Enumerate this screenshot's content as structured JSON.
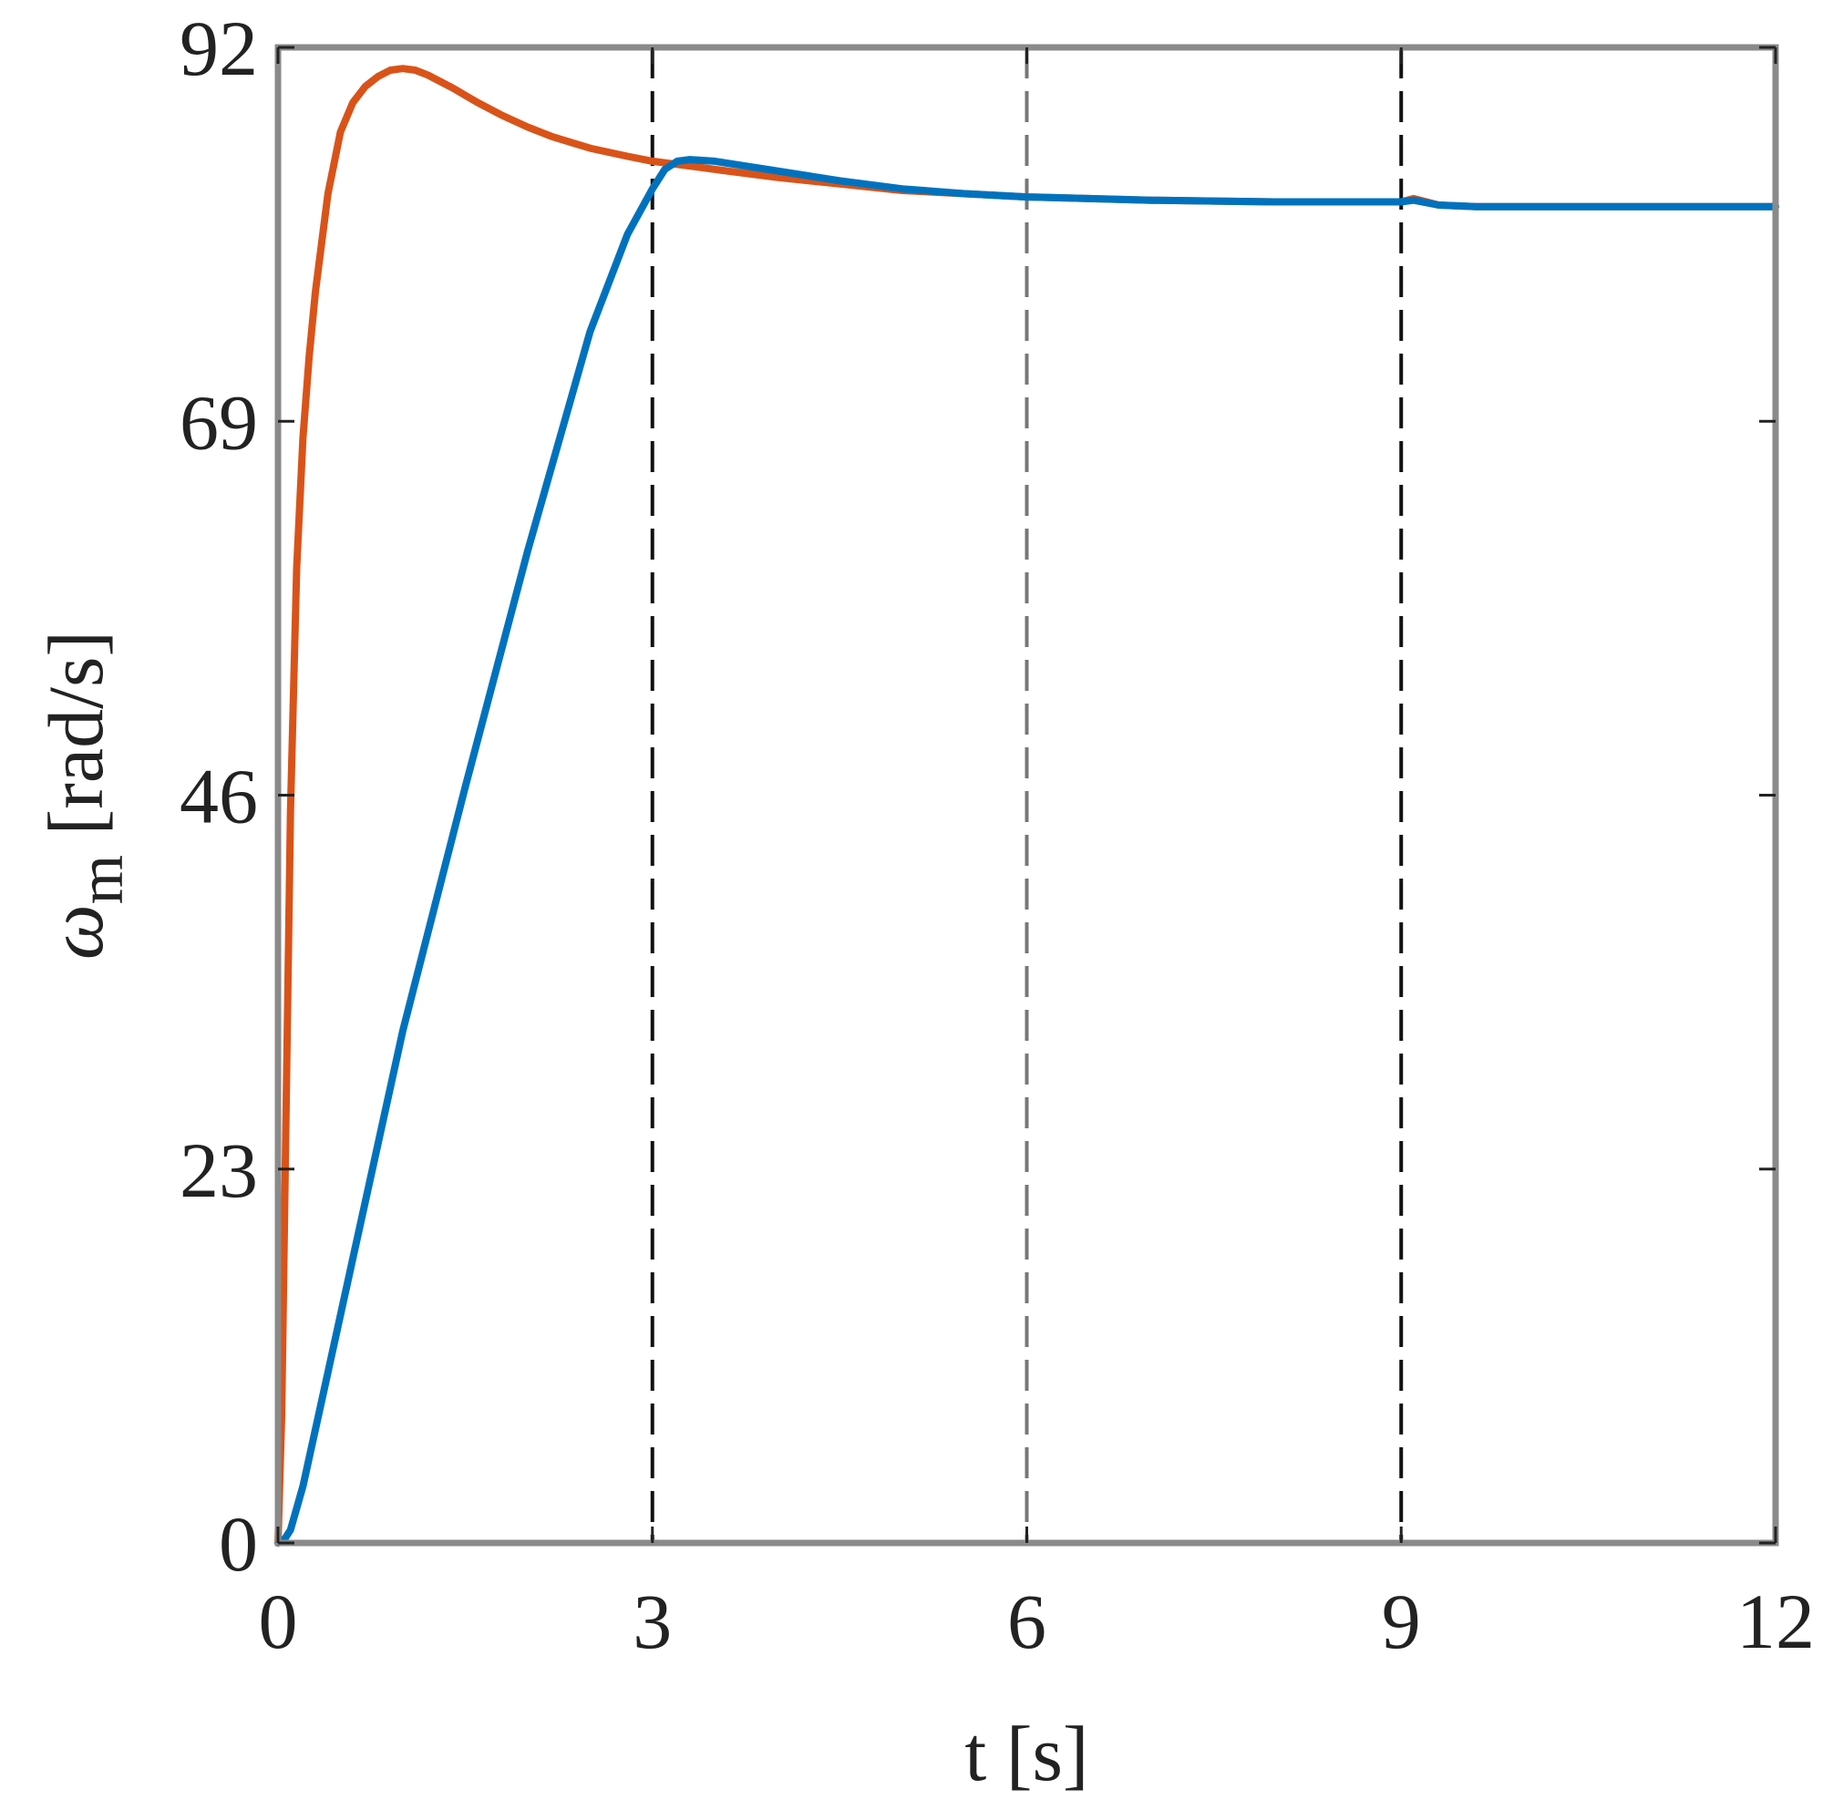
{
  "chart_data": {
    "type": "line",
    "title": "",
    "xlabel": "t [s]",
    "ylabel_symbol": "ω",
    "ylabel_subscript": "m",
    "ylabel_unit": " [rad/s]",
    "xlim": [
      0,
      12
    ],
    "ylim": [
      0,
      92
    ],
    "xticks": [
      "0",
      "3",
      "6",
      "9",
      "12"
    ],
    "yticks": [
      "0",
      "23",
      "46",
      "69",
      "92"
    ],
    "xtick_values": [
      0,
      3,
      6,
      9,
      12
    ],
    "ytick_values": [
      0,
      23,
      46,
      69,
      92
    ],
    "grid": false,
    "vertical_lines": [
      {
        "x": 3,
        "color": "#111111"
      },
      {
        "x": 6,
        "color": "#777777"
      },
      {
        "x": 9,
        "color": "#111111"
      }
    ],
    "series": [
      {
        "color": "#D95319",
        "x": [
          0,
          0.03,
          0.06,
          0.1,
          0.15,
          0.2,
          0.25,
          0.3,
          0.4,
          0.5,
          0.6,
          0.7,
          0.8,
          0.9,
          1.0,
          1.1,
          1.2,
          1.4,
          1.6,
          1.8,
          2.0,
          2.2,
          2.5,
          2.8,
          3.0,
          3.3,
          3.6,
          4.0,
          4.5,
          5.0,
          5.5,
          6.0,
          6.5,
          7.0,
          7.5,
          8.0,
          8.5,
          9.0,
          9.1,
          9.3,
          9.6,
          10.0,
          10.5,
          11.0,
          11.5,
          12.0
        ],
        "y": [
          0,
          8,
          24,
          45,
          60,
          68,
          73,
          77,
          83,
          86.8,
          88.6,
          89.6,
          90.2,
          90.6,
          90.7,
          90.6,
          90.3,
          89.5,
          88.6,
          87.8,
          87.1,
          86.5,
          85.8,
          85.3,
          85.0,
          84.7,
          84.4,
          84.0,
          83.6,
          83.2,
          83.0,
          82.8,
          82.7,
          82.6,
          82.55,
          82.5,
          82.5,
          82.5,
          82.7,
          82.3,
          82.2,
          82.2,
          82.2,
          82.2,
          82.2,
          82.2
        ]
      },
      {
        "color": "#0072BD",
        "x": [
          0,
          0.05,
          0.1,
          0.2,
          0.4,
          0.6,
          0.8,
          1.0,
          1.5,
          2.0,
          2.5,
          2.8,
          3.0,
          3.1,
          3.2,
          3.3,
          3.5,
          4.0,
          4.5,
          5.0,
          5.5,
          6.0,
          6.5,
          7.0,
          7.5,
          8.0,
          8.5,
          9.0,
          9.1,
          9.3,
          9.6,
          10.0,
          10.5,
          11.0,
          11.5,
          12.0
        ],
        "y": [
          0,
          0.2,
          0.8,
          3.5,
          10.5,
          17.5,
          24.5,
          31.5,
          46.5,
          61,
          74.5,
          80.5,
          83.3,
          84.5,
          85.0,
          85.1,
          85.0,
          84.4,
          83.8,
          83.3,
          83.0,
          82.8,
          82.7,
          82.6,
          82.55,
          82.5,
          82.5,
          82.5,
          82.6,
          82.3,
          82.2,
          82.2,
          82.2,
          82.2,
          82.2,
          82.2
        ]
      }
    ]
  }
}
